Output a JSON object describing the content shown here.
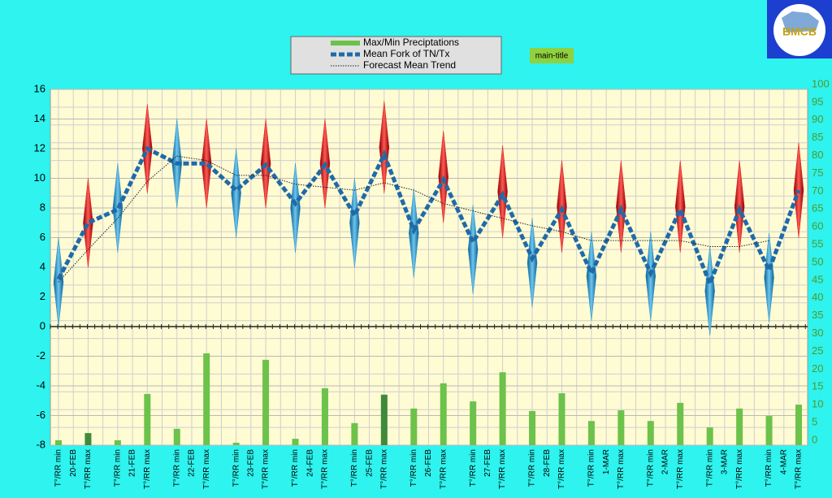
{
  "chart_data": {
    "type": "combo",
    "title": "main-title",
    "logo": "BMCB",
    "categories": [
      "T°/RR min",
      "T°/RR max",
      "T°/RR min",
      "T°/RR max",
      "T°/RR min",
      "T°/RR max",
      "T°/RR min",
      "T°/RR max",
      "T°/RR min",
      "T°/RR max",
      "T°/RR min",
      "T°/RR max",
      "T°/RR min",
      "T°/RR max",
      "T°/RR min",
      "T°/RR max",
      "T°/RR min",
      "T°/RR max",
      "T°/RR min",
      "T°/RR max",
      "T°/RR min",
      "T°/RR max",
      "T°/RR min",
      "T°/RR max",
      "T°/RR min",
      "T°/RR max"
    ],
    "dates": [
      "20-FEB",
      "21-FEB",
      "22-FEB",
      "23-FEB",
      "24-FEB",
      "25-FEB",
      "26-FEB",
      "27-FEB",
      "28-FEB",
      "1-MAR",
      "2-MAR",
      "3-MAR",
      "4-MAR"
    ],
    "ylim": [
      -8,
      16
    ],
    "yticks": [
      -8,
      -6,
      -4,
      -2,
      0,
      2,
      4,
      6,
      8,
      10,
      12,
      14,
      16
    ],
    "y2lim": [
      0,
      100
    ],
    "y2ticks": [
      0,
      5,
      10,
      15,
      20,
      25,
      30,
      35,
      40,
      45,
      50,
      55,
      60,
      65,
      70,
      75,
      80,
      85,
      90,
      95,
      100
    ],
    "grid": true,
    "series": [
      {
        "name": "Max/Min Preciptations",
        "type": "bar",
        "axis": "y2",
        "color": "#6cc24a",
        "colors": [
          "#6cc24a",
          "#3f8a3a",
          "#6cc24a",
          "#6cc24a",
          "#6cc24a",
          "#6cc24a",
          "#6cc24a",
          "#6cc24a",
          "#6cc24a",
          "#6cc24a",
          "#6cc24a",
          "#3f8a3a",
          "#6cc24a",
          "#6cc24a",
          "#6cc24a",
          "#6cc24a",
          "#6cc24a",
          "#6cc24a",
          "#6cc24a",
          "#6cc24a",
          "#6cc24a",
          "#6cc24a",
          "#6cc24a",
          "#6cc24a",
          "#6cc24a",
          "#6cc24a"
        ],
        "values": [
          1.4,
          3.4,
          1.4,
          14.4,
          4.6,
          25.8,
          0.7,
          24,
          1.8,
          16,
          6.2,
          14.2,
          10.3,
          17.4,
          12.3,
          20.5,
          9.6,
          14.6,
          6.8,
          9.8,
          6.8,
          11.9,
          5,
          10.3,
          8.2,
          11.4
        ]
      },
      {
        "name": "Mean Fork of TN/Tx",
        "type": "line",
        "color": "#1f6aa8",
        "values": [
          3.2,
          7.0,
          7.9,
          12.0,
          11.0,
          11.0,
          9.2,
          10.9,
          8.3,
          10.9,
          7.5,
          11.6,
          6.5,
          9.9,
          5.7,
          8.9,
          4.6,
          7.9,
          3.6,
          7.9,
          3.6,
          7.9,
          2.9,
          7.9,
          3.8,
          9.2
        ]
      },
      {
        "name": "Forecast Mean Trend",
        "type": "trend",
        "color": "#222222",
        "values": [
          3.0,
          5.2,
          7.3,
          9.8,
          11.5,
          11.2,
          10.2,
          10.2,
          9.6,
          9.4,
          9.2,
          9.7,
          9.2,
          8.3,
          7.8,
          7.3,
          6.8,
          6.4,
          5.8,
          5.8,
          5.8,
          5.8,
          5.4,
          5.4,
          5.8,
          null
        ]
      }
    ],
    "ranges": {
      "min_color": "#2a8fc8",
      "max_color": "#d8141c",
      "low": [
        0,
        4,
        5,
        9,
        8,
        8,
        6,
        8,
        5,
        8,
        4,
        9,
        3.3,
        7,
        2.2,
        6,
        1.3,
        5,
        0.4,
        5,
        0.4,
        5,
        -0.6,
        5,
        0.3,
        6
      ],
      "high": [
        6,
        10,
        11,
        15,
        14,
        14,
        12,
        14,
        11,
        14,
        10,
        15.2,
        9.3,
        13.2,
        8.2,
        12.2,
        7.3,
        11.2,
        6.4,
        11.2,
        6.4,
        11.2,
        5.4,
        11.2,
        6.3,
        12.4
      ]
    }
  }
}
